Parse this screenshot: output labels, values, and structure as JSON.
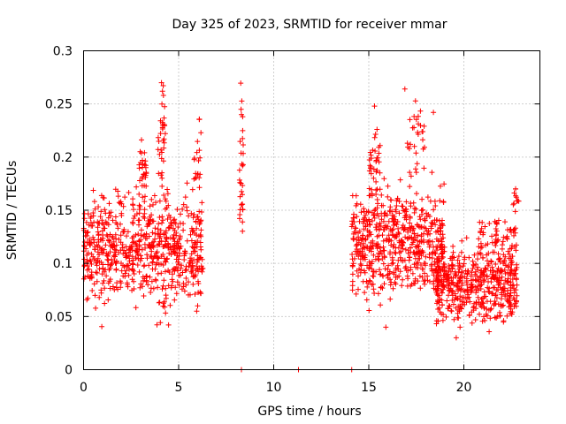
{
  "chart_data": {
    "type": "scatter",
    "title": "Day 325 of 2023, SRMTID for receiver mmar",
    "xlabel": "GPS time / hours",
    "ylabel": "SRMTID / TECUs",
    "xlim": [
      0,
      24
    ],
    "ylim": [
      0,
      0.3
    ],
    "x_ticks": [
      0,
      5,
      10,
      15,
      20
    ],
    "y_ticks": [
      0,
      0.05,
      0.1,
      0.15,
      0.2,
      0.25,
      0.3
    ],
    "x_tick_labels": [
      "0",
      "5",
      "10",
      "15",
      "20"
    ],
    "y_tick_labels": [
      "0",
      "0.05",
      "0.1",
      "0.15",
      "0.2",
      "0.25",
      "0.3"
    ],
    "grid": true,
    "marker": "+",
    "series_color": "#ff0000",
    "series": [
      {
        "name": "SRMTID",
        "clusters": [
          {
            "x_range": [
              0.0,
              6.3
            ],
            "y_center": 0.115,
            "y_spread": 0.03,
            "count": 700
          },
          {
            "x_range": [
              2.9,
              3.3
            ],
            "y_center": 0.185,
            "y_spread": 0.02,
            "count": 30
          },
          {
            "x_range": [
              3.9,
              4.3
            ],
            "y_center": 0.215,
            "y_spread": 0.03,
            "count": 30
          },
          {
            "x_range": [
              5.8,
              6.2
            ],
            "y_center": 0.2,
            "y_spread": 0.025,
            "count": 20
          },
          {
            "x_range": [
              4.0,
              4.6
            ],
            "y_center": 0.055,
            "y_spread": 0.008,
            "count": 8
          },
          {
            "x_range": [
              8.2,
              8.4
            ],
            "y_center": 0.2,
            "y_spread": 0.045,
            "count": 30
          },
          {
            "x_range": [
              14.1,
              19.0
            ],
            "y_center": 0.12,
            "y_spread": 0.03,
            "count": 600
          },
          {
            "x_range": [
              15.0,
              15.6
            ],
            "y_center": 0.195,
            "y_spread": 0.02,
            "count": 30
          },
          {
            "x_range": [
              17.0,
              18.0
            ],
            "y_center": 0.215,
            "y_spread": 0.02,
            "count": 30
          },
          {
            "x_range": [
              18.5,
              22.8
            ],
            "y_center": 0.08,
            "y_spread": 0.02,
            "count": 500
          },
          {
            "x_range": [
              20.8,
              22.8
            ],
            "y_center": 0.125,
            "y_spread": 0.015,
            "count": 60
          },
          {
            "x_range": [
              22.6,
              22.9
            ],
            "y_center": 0.165,
            "y_spread": 0.01,
            "count": 10
          }
        ],
        "points": [
          [
            4.1,
            0.27
          ],
          [
            4.15,
            0.262
          ],
          [
            4.2,
            0.258
          ],
          [
            4.12,
            0.25
          ],
          [
            15.3,
            0.248
          ],
          [
            16.9,
            0.264
          ],
          [
            18.4,
            0.242
          ],
          [
            8.3,
            0.24
          ],
          [
            8.3,
            0.155
          ],
          [
            19.6,
            0.03
          ],
          [
            19.8,
            0.04
          ],
          [
            15.9,
            0.04
          ],
          [
            6.0,
            0.06
          ],
          [
            5.95,
            0.055
          ],
          [
            8.3,
            0.0
          ],
          [
            11.3,
            0.0
          ],
          [
            14.1,
            0.0
          ]
        ]
      }
    ]
  }
}
